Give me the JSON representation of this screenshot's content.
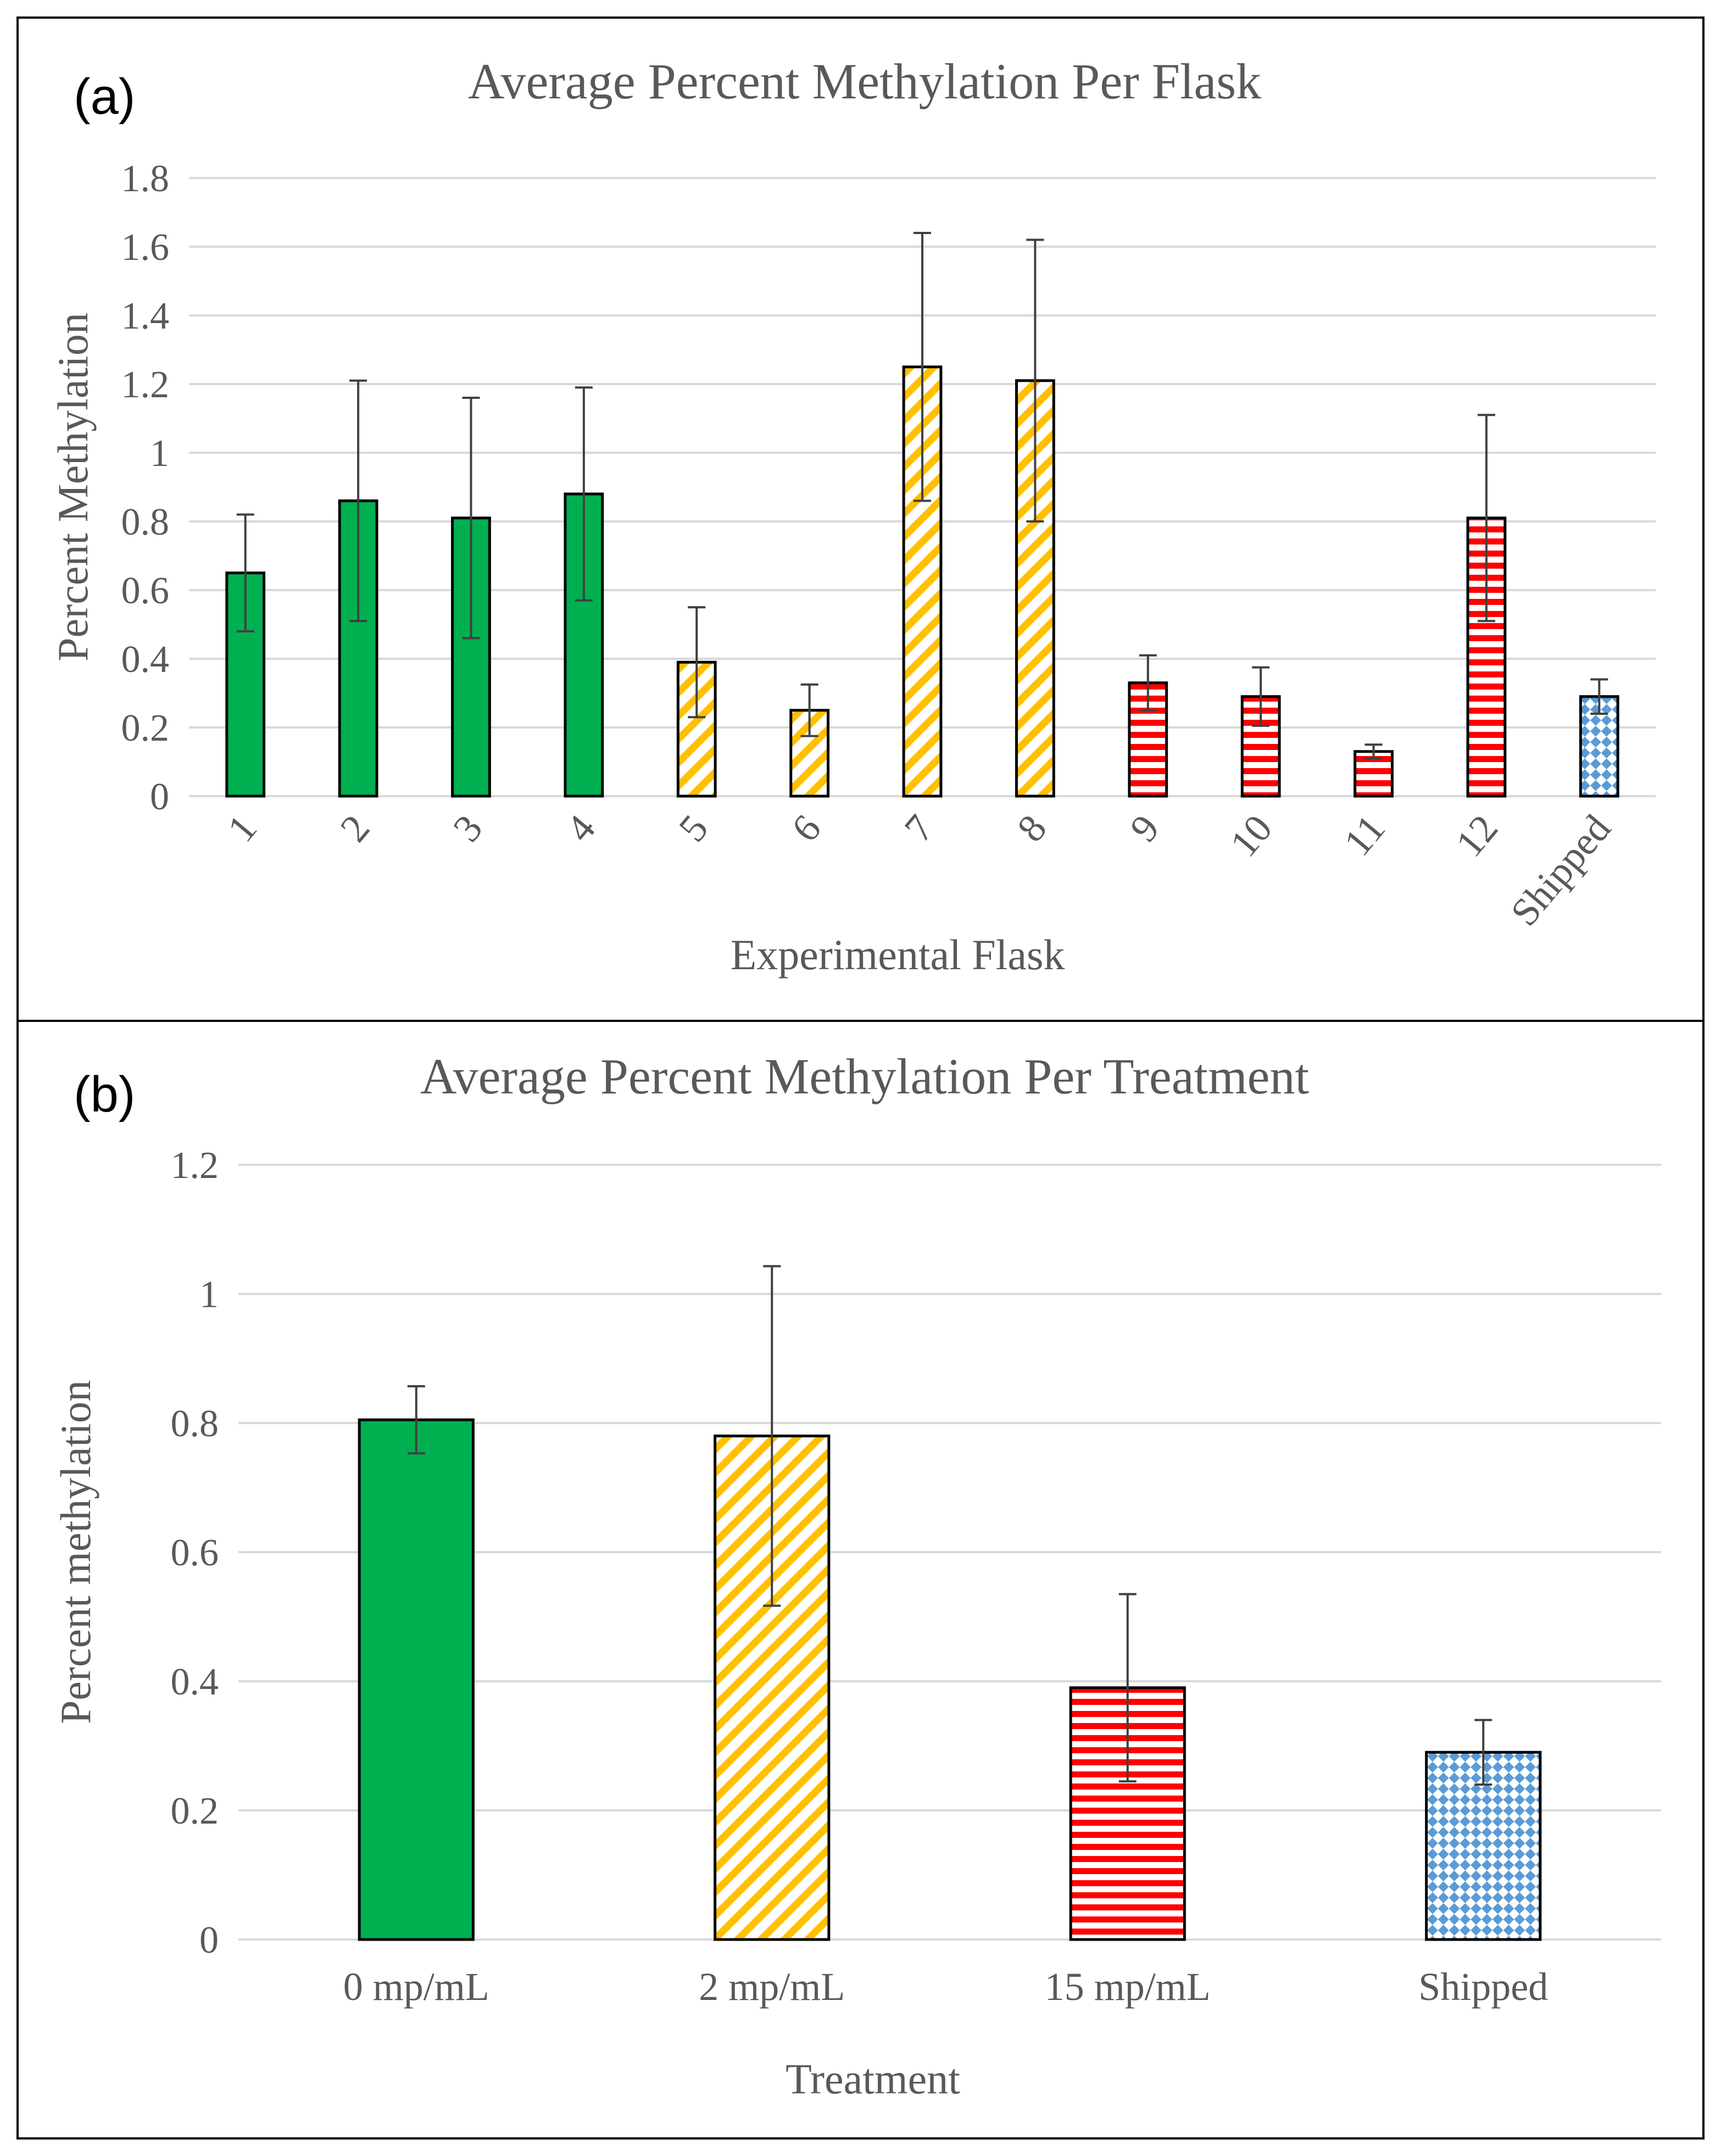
{
  "colors": {
    "green": "#00b050",
    "yellow": "#ffc000",
    "red": "#ff0000",
    "blue": "#5b9bd5",
    "grid": "#d9d9d9",
    "text": "#595959",
    "error": "#404040"
  },
  "chart_data": [
    {
      "panel_label": "(a)",
      "type": "bar",
      "title": "Average Percent Methylation Per Flask",
      "xlabel": "Experimental Flask",
      "ylabel": "Percent Methylation",
      "ylim": [
        0,
        1.8
      ],
      "yticks": [
        "0",
        "0.2",
        "0.4",
        "0.6",
        "0.8",
        "1",
        "1.2",
        "1.4",
        "1.6",
        "1.8"
      ],
      "categories": [
        "1",
        "2",
        "3",
        "4",
        "5",
        "6",
        "7",
        "8",
        "9",
        "10",
        "11",
        "12",
        "Shipped"
      ],
      "values": [
        0.65,
        0.86,
        0.81,
        0.88,
        0.39,
        0.25,
        1.25,
        1.21,
        0.33,
        0.29,
        0.13,
        0.81,
        0.29
      ],
      "errors": [
        0.17,
        0.35,
        0.35,
        0.31,
        0.16,
        0.075,
        0.39,
        0.41,
        0.08,
        0.085,
        0.02,
        0.3,
        0.05
      ],
      "patterns": [
        "green",
        "green",
        "green",
        "green",
        "yellow",
        "yellow",
        "yellow",
        "yellow",
        "red",
        "red",
        "red",
        "red",
        "blue"
      ],
      "grid": true
    },
    {
      "panel_label": "(b)",
      "type": "bar",
      "title": "Average Percent Methylation Per Treatment",
      "xlabel": "Treatment",
      "ylabel": "Percent methylation",
      "ylim": [
        0,
        1.2
      ],
      "yticks": [
        "0",
        "0.2",
        "0.4",
        "0.6",
        "0.8",
        "1",
        "1.2"
      ],
      "categories": [
        "0 mp/mL",
        "2 mp/mL",
        "15 mp/mL",
        "Shipped"
      ],
      "values": [
        0.805,
        0.78,
        0.39,
        0.29
      ],
      "errors": [
        0.052,
        0.263,
        0.145,
        0.05
      ],
      "patterns": [
        "green",
        "yellow",
        "red",
        "blue"
      ],
      "grid": true
    }
  ]
}
